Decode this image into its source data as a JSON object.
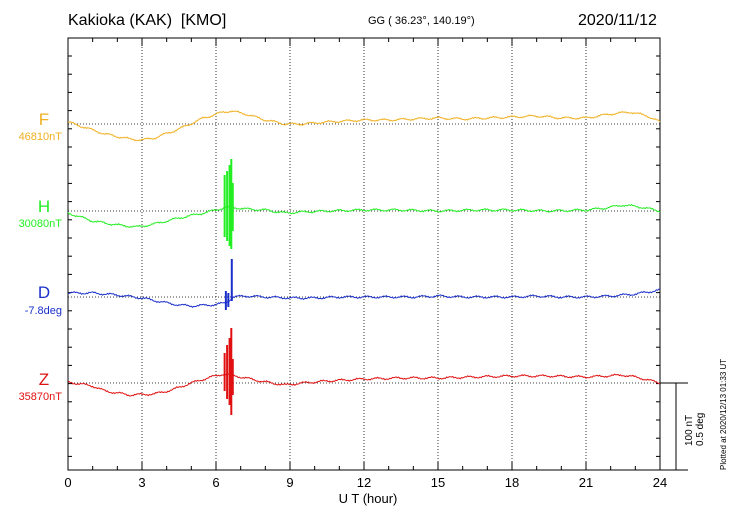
{
  "header": {
    "title": "Kakioka (KAK)  [KMO]",
    "coords": "GG ( 36.23°, 140.19°)",
    "date": "2020/11/12"
  },
  "footer": {
    "plotted": "Plotted at 2020/12/13 01:33 UT"
  },
  "scale": {
    "nt": "100 nT",
    "deg": "0.5 deg"
  },
  "colors": {
    "F": "#f0b020",
    "H": "#22ee22",
    "D": "#1a2fcc",
    "Z": "#e01010"
  },
  "chart_data": {
    "type": "line",
    "title": "Kakioka (KAK)  [KMO]",
    "xlabel": "U T (hour)",
    "xlim": [
      0,
      24
    ],
    "xticks": [
      "0",
      "3",
      "6",
      "9",
      "12",
      "15",
      "18",
      "21",
      "24"
    ],
    "grid": true,
    "scale_note": "100 nT / 0.5 deg per scale bar",
    "series": [
      {
        "name": "F",
        "baseline": "46810nT",
        "unit": "nT",
        "color": "#f0b020",
        "x": [
          0,
          1.5,
          2.5,
          3,
          3.5,
          4.5,
          5.5,
          6.3,
          6.6,
          7.2,
          8,
          8.8,
          9.5,
          10.5,
          12,
          13,
          14,
          15,
          16,
          17,
          18,
          19,
          20,
          21,
          22,
          22.8,
          23.5,
          24
        ],
        "y": [
          2,
          -10,
          -15,
          -16,
          -14,
          -5,
          6,
          12,
          13,
          10,
          4,
          0,
          0,
          2,
          4,
          4,
          5,
          6,
          5,
          6,
          7,
          8,
          6,
          6,
          10,
          12,
          8,
          2
        ],
        "spikes": []
      },
      {
        "name": "H",
        "baseline": "30080nT",
        "unit": "nT",
        "color": "#22ee22",
        "x": [
          0,
          1,
          2,
          2.8,
          3.5,
          4.5,
          5.5,
          6.3,
          6.55,
          7.2,
          8,
          8.8,
          9.5,
          10.5,
          12,
          13.5,
          15,
          16.5,
          18,
          19.5,
          21,
          21.8,
          22.5,
          23.2,
          24
        ],
        "y": [
          -2,
          -10,
          -14,
          -16,
          -13,
          -7,
          -2,
          3,
          4,
          2,
          1,
          -2,
          -1,
          0,
          1,
          1,
          0,
          1,
          1,
          0,
          1,
          3,
          6,
          4,
          0
        ],
        "spikes": [
          {
            "x": 6.35,
            "lo": -26,
            "hi": 36
          },
          {
            "x": 6.45,
            "lo": -30,
            "hi": 40
          },
          {
            "x": 6.55,
            "lo": -35,
            "hi": 46
          },
          {
            "x": 6.62,
            "lo": -38,
            "hi": 52
          },
          {
            "x": 6.68,
            "lo": -20,
            "hi": 28
          }
        ]
      },
      {
        "name": "D",
        "baseline": "-7.8deg",
        "unit": "deg",
        "color": "#1a2fcc",
        "x": [
          0,
          1,
          2,
          3,
          3.8,
          4.5,
          5,
          5.8,
          6.4,
          6.7,
          7.2,
          8,
          9,
          10,
          11,
          12,
          13,
          14,
          15,
          16,
          17,
          18,
          19,
          20,
          21,
          22,
          23,
          24
        ],
        "y": [
          4,
          4,
          2,
          -1,
          -5,
          -8,
          -9,
          -8,
          -6,
          0,
          1,
          0,
          -1,
          -1,
          0,
          0,
          0,
          0,
          1,
          0,
          0,
          0,
          1,
          0,
          0,
          1,
          3,
          7
        ],
        "spikes": [
          {
            "x": 6.4,
            "lo": -13,
            "hi": 6
          },
          {
            "x": 6.5,
            "lo": -10,
            "hi": 4
          },
          {
            "x": 6.64,
            "lo": -4,
            "hi": 38
          }
        ]
      },
      {
        "name": "Z",
        "baseline": "35870nT",
        "unit": "nT",
        "color": "#e01010",
        "x": [
          0,
          1,
          1.5,
          2.5,
          3.5,
          4.2,
          5,
          5.8,
          6.3,
          6.6,
          7.2,
          8,
          8.8,
          9.5,
          10.5,
          12,
          13.5,
          15,
          16.5,
          18,
          19.5,
          21,
          21.8,
          22.5,
          23.2,
          24
        ],
        "y": [
          1,
          -3,
          -8,
          -12,
          -11,
          -7,
          0,
          6,
          9,
          8,
          5,
          1,
          -2,
          0,
          2,
          4,
          5,
          5,
          6,
          7,
          7,
          6,
          7,
          8,
          5,
          0
        ],
        "spikes": [
          {
            "x": 6.35,
            "lo": -8,
            "hi": 30
          },
          {
            "x": 6.45,
            "lo": -16,
            "hi": 38
          },
          {
            "x": 6.55,
            "lo": -22,
            "hi": 45
          },
          {
            "x": 6.62,
            "lo": -32,
            "hi": 55
          },
          {
            "x": 6.68,
            "lo": -12,
            "hi": 24
          }
        ]
      }
    ]
  }
}
